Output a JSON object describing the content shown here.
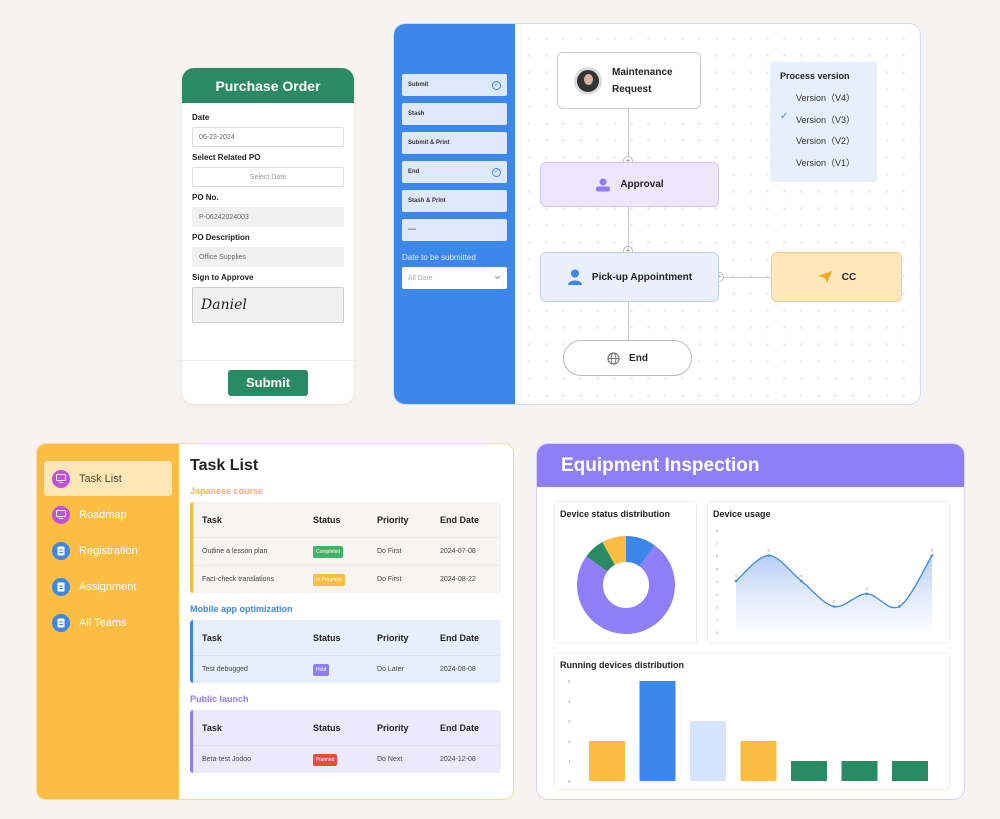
{
  "purchase_order": {
    "title": "Purchase Order",
    "date_label": "Date",
    "date_value": "06-23-2024",
    "related_po_label": "Select Related PO",
    "related_po_placeholder": "Select Date",
    "po_no_label": "PO No.",
    "po_no_value": "P-06242024003",
    "description_label": "PO Description",
    "description_value": "Office Supplies",
    "sign_label": "Sign to Approve",
    "sign_value": "Daniel",
    "submit_label": "Submit"
  },
  "workflow": {
    "sidebar_buttons": [
      {
        "label": "Submit",
        "checked": true
      },
      {
        "label": "Stash",
        "checked": false
      },
      {
        "label": "Submit & Print",
        "checked": false
      },
      {
        "label": "End",
        "checked": true
      },
      {
        "label": "Stash & Print",
        "checked": false
      },
      {
        "label": "----",
        "checked": false
      }
    ],
    "date_label": "Date to be submitted",
    "date_select": "All Date",
    "nodes": {
      "start": "Maintenance Request",
      "approval": "Approval",
      "pickup": "Pick-up Appointment",
      "cc": "CC",
      "end": "End"
    },
    "process_version": {
      "title": "Process version",
      "items": [
        "Version（V4）",
        "Version（V3）",
        "Version（V2）",
        "Version（V1）"
      ],
      "selected_index": 1
    }
  },
  "task_list": {
    "sidebar": [
      {
        "label": "Task List",
        "active": true,
        "icon": "monitor-icon",
        "color": "#c44fdb"
      },
      {
        "label": "Roadmap",
        "active": false,
        "icon": "monitor-icon",
        "color": "#c44fdb"
      },
      {
        "label": "Registration",
        "active": false,
        "icon": "document-icon",
        "color": "#3d87ea"
      },
      {
        "label": "Assignment",
        "active": false,
        "icon": "document-icon",
        "color": "#3d87ea"
      },
      {
        "label": "All Teams",
        "active": false,
        "icon": "document-icon",
        "color": "#3d87ea"
      }
    ],
    "title": "Task List",
    "columns": [
      "Task",
      "Status",
      "Priority",
      "End Date"
    ],
    "groups": [
      {
        "name": "Japanese course",
        "color": "#f5b83d",
        "bg": "#f7f4f1",
        "rows": [
          {
            "task": "Outline a lesson plan",
            "status": "Completed",
            "status_color": "#3cb567",
            "priority": "Do First",
            "end": "2024-07-08"
          },
          {
            "task": "Fact-check translations",
            "status": "In Progress",
            "status_color": "#fbbd42",
            "priority": "Do First",
            "end": "2024-08-22"
          }
        ]
      },
      {
        "name": "Mobile app optimization",
        "color": "#3d87ea",
        "bg": "#e7effc",
        "rows": [
          {
            "task": "Test debugged",
            "status": "Hold",
            "status_color": "#8f7ef5",
            "priority": "Do Later",
            "end": "2024-08-08"
          }
        ]
      },
      {
        "name": "Public launch",
        "color": "#8f7ef5",
        "bg": "#ede9fc",
        "rows": [
          {
            "task": "Beta-test Jodoo",
            "status": "Planned",
            "status_color": "#ef4b3a",
            "priority": "Do Next",
            "end": "2024-12-08"
          }
        ]
      }
    ]
  },
  "equipment": {
    "title": "Equipment Inspection",
    "status_title": "Device status distribution",
    "usage_title": "Device usage",
    "running_title": "Running devices distribution"
  },
  "chart_data": [
    {
      "type": "pie",
      "title": "Device status distribution",
      "values": [
        75,
        10,
        8,
        7
      ],
      "colors": [
        "#8f7ef5",
        "#3d87ea",
        "#fbbd42",
        "#2a8a66"
      ]
    },
    {
      "type": "area",
      "title": "Device usage",
      "y_ticks": [
        "0",
        "1",
        "2",
        "3",
        "4",
        "5",
        "6",
        "7",
        "8"
      ],
      "values": [
        4,
        6,
        4,
        2,
        3,
        2,
        6
      ],
      "point_labels": [
        "4",
        "6",
        "4",
        "2",
        "3",
        "2",
        "6"
      ],
      "ylim": [
        0,
        8
      ]
    },
    {
      "type": "bar",
      "title": "Running devices distribution",
      "y_ticks": [
        "0",
        "1",
        "2",
        "3",
        "4",
        "5"
      ],
      "values": [
        2,
        5,
        3,
        2,
        1,
        1,
        1
      ],
      "colors": [
        "#fbbd42",
        "#3d87ea",
        "#d6e4fb",
        "#fbbd42",
        "#2a8a66",
        "#2a8a66",
        "#2a8a66"
      ],
      "ylim": [
        0,
        5
      ]
    }
  ]
}
